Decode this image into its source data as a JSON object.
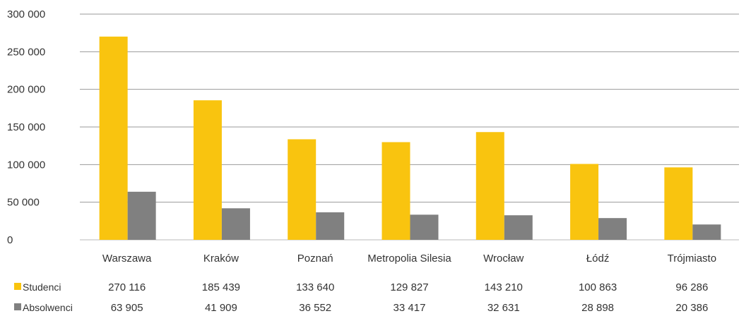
{
  "chart_data": {
    "type": "bar",
    "categories": [
      "Warszawa",
      "Kraków",
      "Poznań",
      "Metropolia Silesia",
      "Wrocław",
      "Łódź",
      "Trójmiasto"
    ],
    "series": [
      {
        "name": "Studenci",
        "color": "#F9C40F",
        "values": [
          270116,
          185439,
          133640,
          129827,
          143210,
          100863,
          96286
        ]
      },
      {
        "name": "Absolwenci",
        "color": "#808080",
        "values": [
          63905,
          41909,
          36552,
          33417,
          32631,
          28898,
          20386
        ]
      }
    ],
    "value_labels": [
      [
        "270 116",
        "185 439",
        "133 640",
        "129 827",
        "143 210",
        "100 863",
        "96 286"
      ],
      [
        "63 905",
        "41 909",
        "36 552",
        "33 417",
        "32 631",
        "28 898",
        "20 386"
      ]
    ],
    "yticks": [
      0,
      50000,
      100000,
      150000,
      200000,
      250000,
      300000
    ],
    "ytick_labels": [
      "0",
      "50 000",
      "100 000",
      "150 000",
      "200 000",
      "250 000",
      "300 000"
    ],
    "ylim": [
      0,
      300000
    ],
    "grid": true,
    "legend": "data-table-below",
    "title": "",
    "xlabel": "",
    "ylabel": ""
  }
}
